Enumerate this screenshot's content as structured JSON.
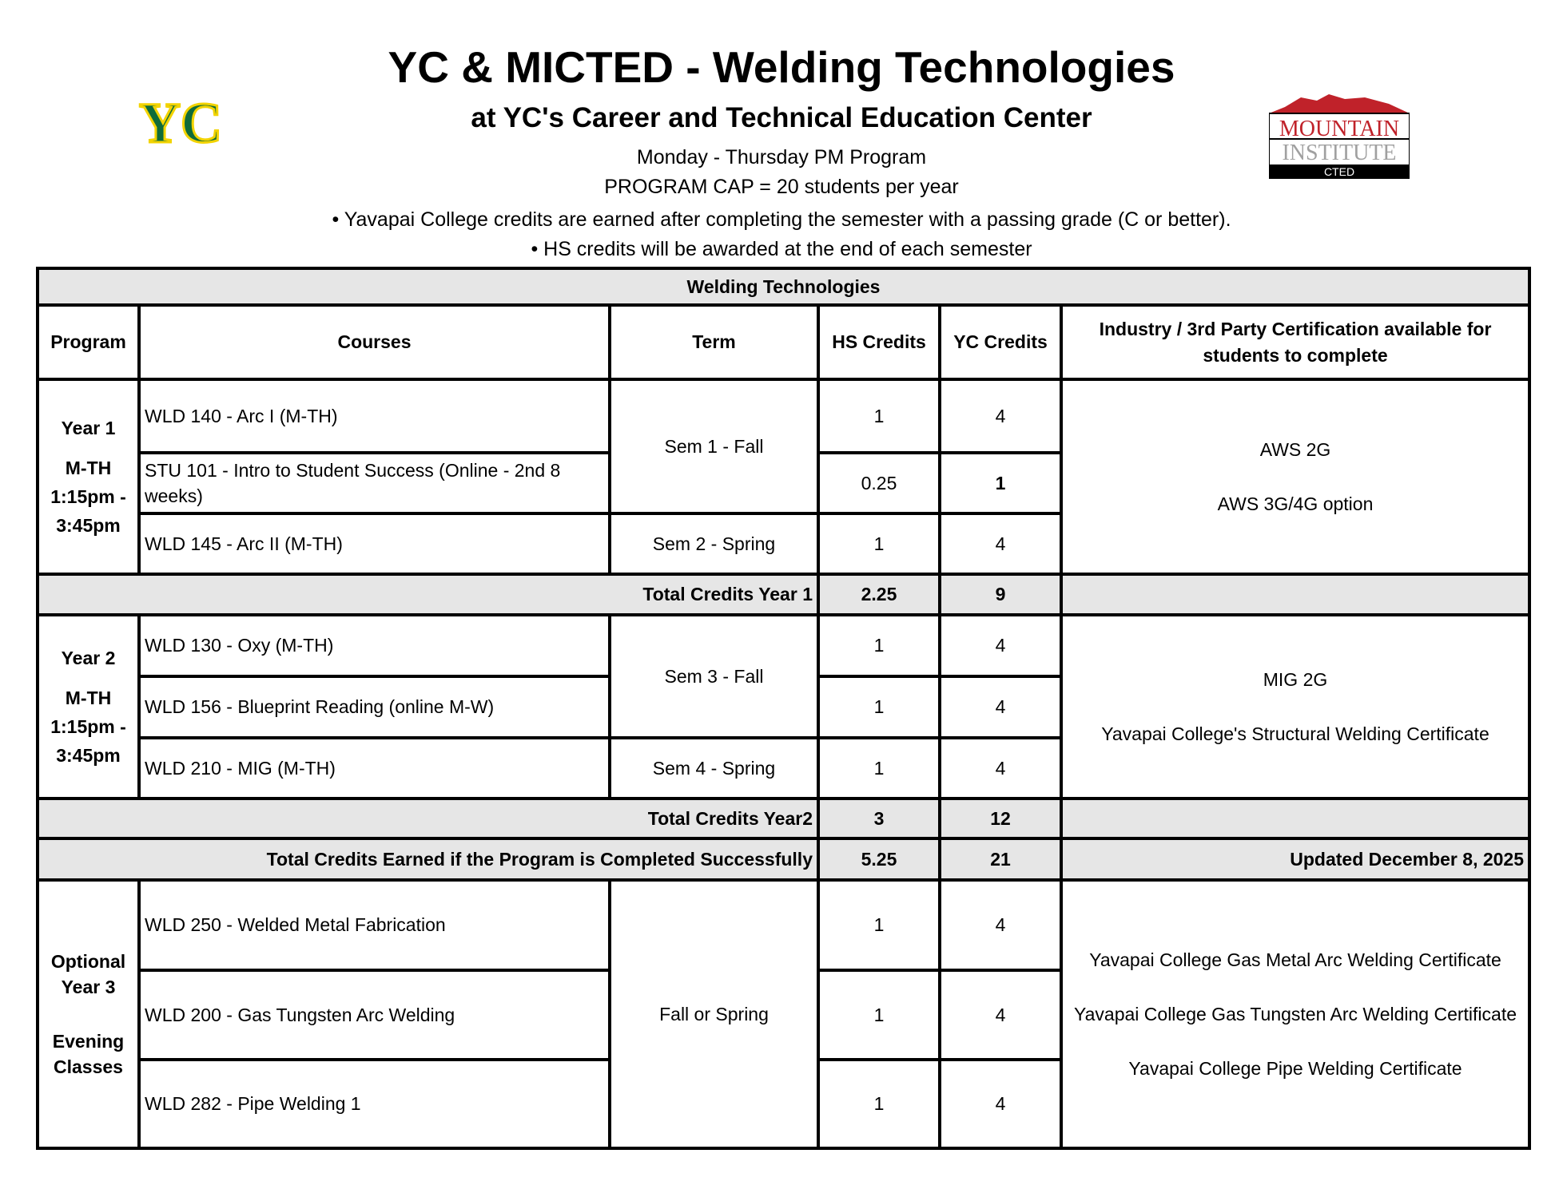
{
  "header": {
    "title": "YC & MICTED - Welding Technologies",
    "subtitle": "at YC's Career and Technical Education Center",
    "schedule": "Monday - Thursday PM Program",
    "cap": "PROGRAM CAP = 20 students per year",
    "note1": "• Yavapai College credits are earned after completing the semester with a passing grade (C or better).",
    "note2": "• HS credits will be awarded at the end of each semester"
  },
  "logos": {
    "left": "YC",
    "right": {
      "line1": "MOUNTAIN",
      "line2": "INSTITUTE",
      "line3": "CTED"
    }
  },
  "colors": {
    "yc_green": "#0f6b3a",
    "yc_gold": "#f2d300",
    "mi_red": "#c0222a",
    "header_gray": "#e6e6e6"
  },
  "table": {
    "title": "Welding Technologies",
    "headers": [
      "Program",
      "Courses",
      "Term",
      "HS Credits",
      "YC Credits",
      "Industry / 3rd Party Certification available for students to complete"
    ],
    "year1": {
      "program": [
        "Year 1",
        "M-TH",
        "1:15pm -",
        "3:45pm"
      ],
      "courses": [
        {
          "course": "WLD 140 - Arc I (M-TH)",
          "hs": "1",
          "yc": "4"
        },
        {
          "course": "STU 101 - Intro to Student Success (Online - 2nd 8 weeks)",
          "hs": "0.25",
          "yc": "1"
        },
        {
          "course": "WLD 145 - Arc II (M-TH)",
          "hs": "1",
          "yc": "4"
        }
      ],
      "terms": [
        "Sem 1 - Fall",
        "Sem 2 - Spring"
      ],
      "certs": [
        "AWS 2G",
        "AWS 3G/4G option"
      ],
      "total_label": "Total Credits Year 1",
      "total_hs": "2.25",
      "total_yc": "9"
    },
    "year2": {
      "program": [
        "Year 2",
        "M-TH",
        "1:15pm -",
        "3:45pm"
      ],
      "courses": [
        {
          "course": "WLD 130 - Oxy (M-TH)",
          "hs": "1",
          "yc": "4"
        },
        {
          "course": "WLD 156 - Blueprint Reading (online M-W)",
          "hs": "1",
          "yc": "4"
        },
        {
          "course": "WLD 210 - MIG (M-TH)",
          "hs": "1",
          "yc": "4"
        }
      ],
      "terms": [
        "Sem 3 - Fall",
        "Sem 4 - Spring"
      ],
      "certs": [
        "MIG 2G",
        "Yavapai College's Structural Welding Certificate"
      ],
      "total_label": "Total Credits Year2",
      "total_hs": "3",
      "total_yc": "12"
    },
    "grand_total": {
      "label": "Total Credits Earned if the Program is Completed Successfully",
      "hs": "5.25",
      "yc": "21",
      "updated": "Updated December 8, 2025"
    },
    "year3": {
      "program": [
        "Optional",
        "Year 3",
        "Evening",
        "Classes"
      ],
      "courses": [
        {
          "course": "WLD 250 - Welded Metal Fabrication",
          "hs": "1",
          "yc": "4"
        },
        {
          "course": "WLD 200 - Gas Tungsten Arc Welding",
          "hs": "1",
          "yc": "4"
        },
        {
          "course": "WLD 282 - Pipe Welding 1",
          "hs": "1",
          "yc": "4"
        }
      ],
      "term": "Fall or Spring",
      "certs": [
        "Yavapai College Gas Metal Arc Welding Certificate",
        "Yavapai College Gas Tungsten Arc Welding Certificate",
        "Yavapai College Pipe Welding Certificate"
      ]
    }
  }
}
